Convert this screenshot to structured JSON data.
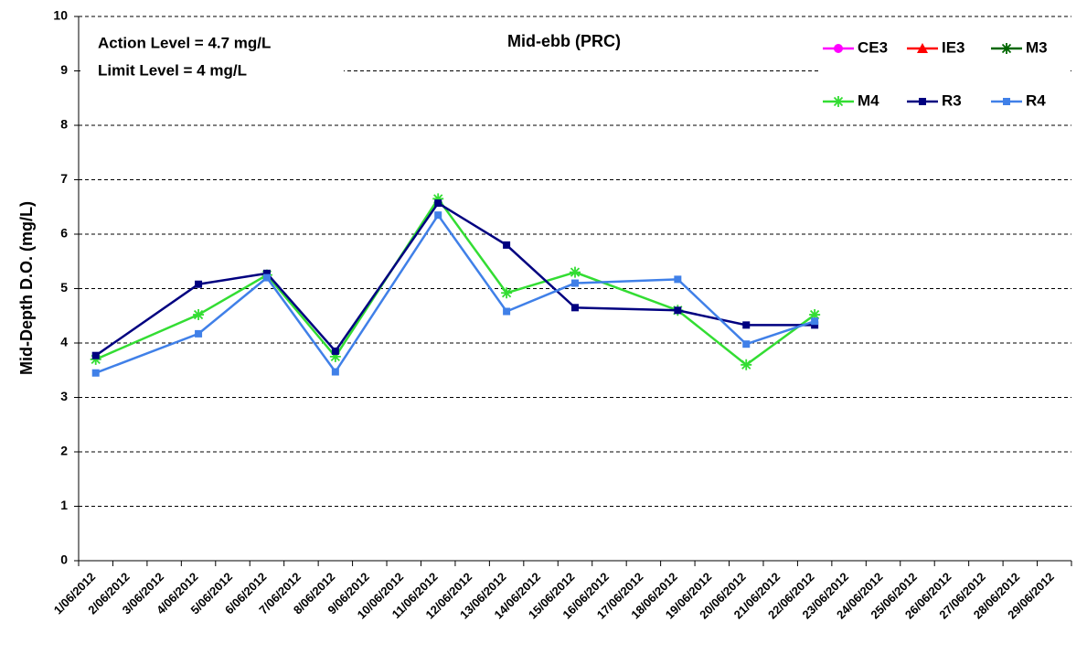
{
  "chart_data": {
    "type": "line",
    "title": "Mid-ebb (PRC)",
    "annotations": [
      "Action Level = 4.7 mg/L",
      "Limit Level = 4 mg/L"
    ],
    "y_label": "Mid-Depth D.O. (mg/L)",
    "categories": [
      "1/06/2012",
      "2/06/2012",
      "3/06/2012",
      "4/06/2012",
      "5/06/2012",
      "6/06/2012",
      "7/06/2012",
      "8/06/2012",
      "9/06/2012",
      "10/06/2012",
      "11/06/2012",
      "12/06/2012",
      "13/06/2012",
      "14/06/2012",
      "15/06/2012",
      "16/06/2012",
      "17/06/2012",
      "18/06/2012",
      "19/06/2012",
      "20/06/2012",
      "21/06/2012",
      "22/06/2012",
      "23/06/2012",
      "24/06/2012",
      "25/06/2012",
      "26/06/2012",
      "27/06/2012",
      "28/06/2012",
      "29/06/2012"
    ],
    "connect_gaps": true,
    "grid": true,
    "legend": "top-right",
    "ylim": [
      0,
      10
    ],
    "yticks": [
      0,
      1,
      2,
      3,
      4,
      5,
      6,
      7,
      8,
      9,
      10
    ],
    "series": [
      {
        "name": "CE3",
        "color": "#ff00ff",
        "marker": "circle",
        "values": [
          null,
          null,
          null,
          null,
          null,
          null,
          null,
          null,
          null,
          null,
          null,
          null,
          null,
          null,
          null,
          null,
          null,
          null,
          null,
          null,
          null,
          null,
          null,
          null,
          null,
          null,
          null,
          null,
          null
        ]
      },
      {
        "name": "IE3",
        "color": "#ff0000",
        "marker": "triangle",
        "values": [
          null,
          null,
          null,
          null,
          null,
          null,
          null,
          null,
          null,
          null,
          null,
          null,
          null,
          null,
          null,
          null,
          null,
          null,
          null,
          null,
          null,
          null,
          null,
          null,
          null,
          null,
          null,
          null,
          null
        ]
      },
      {
        "name": "M3",
        "color": "#006600",
        "marker": "star",
        "values": [
          null,
          null,
          null,
          null,
          null,
          null,
          null,
          null,
          null,
          null,
          null,
          null,
          null,
          null,
          null,
          null,
          null,
          null,
          null,
          null,
          null,
          null,
          null,
          null,
          null,
          null,
          null,
          null,
          null
        ]
      },
      {
        "name": "M4",
        "color": "#33dd33",
        "marker": "star",
        "values": [
          3.7,
          null,
          null,
          4.52,
          null,
          5.25,
          null,
          3.75,
          null,
          null,
          6.65,
          null,
          4.92,
          null,
          5.3,
          null,
          null,
          4.6,
          null,
          3.6,
          null,
          4.52,
          null,
          null,
          null,
          null,
          null,
          null,
          null
        ]
      },
      {
        "name": "R3",
        "color": "#000080",
        "marker": "square",
        "values": [
          3.77,
          null,
          null,
          5.08,
          null,
          5.28,
          null,
          3.85,
          null,
          null,
          6.57,
          null,
          5.8,
          null,
          4.65,
          null,
          null,
          4.6,
          null,
          4.33,
          null,
          4.33,
          null,
          null,
          null,
          null,
          null,
          null,
          null
        ]
      },
      {
        "name": "R4",
        "color": "#4080e8",
        "marker": "square",
        "values": [
          3.45,
          null,
          null,
          4.17,
          null,
          5.2,
          null,
          3.47,
          null,
          null,
          6.35,
          null,
          4.58,
          null,
          5.1,
          null,
          null,
          5.17,
          null,
          3.98,
          null,
          4.4,
          null,
          null,
          null,
          null,
          null,
          null,
          null
        ]
      }
    ]
  }
}
